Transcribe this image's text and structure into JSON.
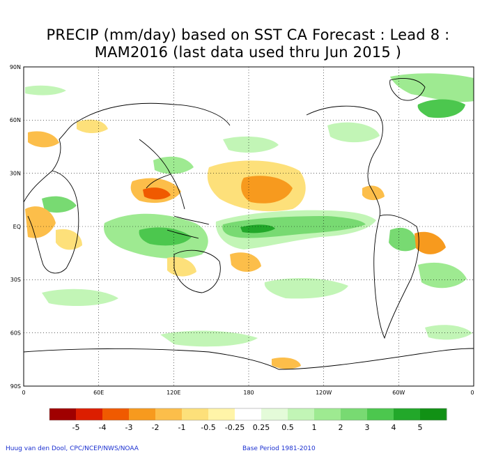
{
  "title": {
    "line1": "PRECIP (mm/day) based on SST CA Forecast : Lead 8 :",
    "line2": "MAM2016 (last data used thru Jun 2015 )"
  },
  "axes": {
    "lat_ticks": [
      "90N",
      "60N",
      "30N",
      "EQ",
      "30S",
      "60S",
      "90S"
    ],
    "lon_ticks": [
      "0",
      "60E",
      "120E",
      "180",
      "120W",
      "60W",
      "0"
    ]
  },
  "legend": {
    "labels": [
      "-5",
      "-4",
      "-3",
      "-2",
      "-1",
      "-0.5",
      "-0.25",
      "0.25",
      "0.5",
      "1",
      "2",
      "3",
      "4",
      "5"
    ],
    "colors": [
      "#a00000",
      "#dc1e00",
      "#f05a00",
      "#f79a1e",
      "#fcbe4a",
      "#fde07a",
      "#fff4a8",
      "#ffffff",
      "#e4fbd9",
      "#c2f5b6",
      "#9eea91",
      "#78da72",
      "#4cc74e",
      "#22a82a",
      "#119115"
    ]
  },
  "credits": {
    "left": "Huug van den Dool, CPC/NCEP/NWS/NOAA",
    "right": "Base Period 1981-2010"
  }
}
